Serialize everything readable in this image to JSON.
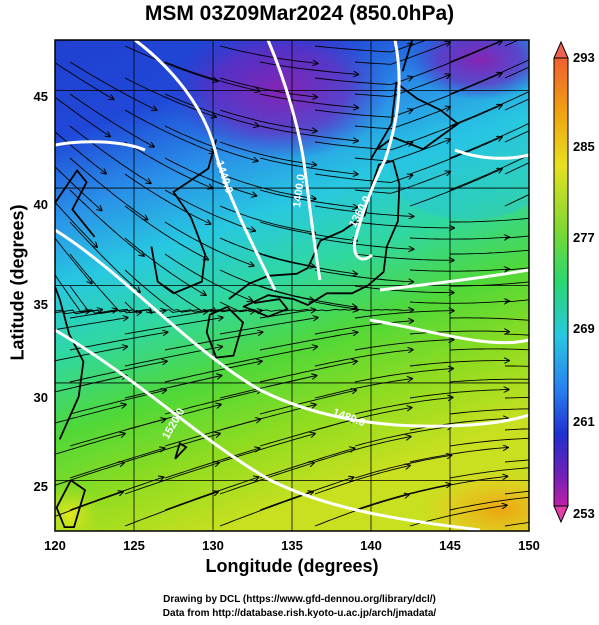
{
  "title": "MSM 03Z09Mar2024 (850.0hPa)",
  "x_axis": {
    "label": "Longitude (degrees)",
    "ticks": [
      "120",
      "125",
      "130",
      "135",
      "140",
      "145",
      "150"
    ],
    "range": [
      120,
      150
    ]
  },
  "y_axis": {
    "label": "Latitude  (degrees)",
    "ticks": [
      "25",
      "30",
      "35",
      "40",
      "45"
    ],
    "range": [
      22.4,
      47.6
    ]
  },
  "colorbar": {
    "labels": [
      "293",
      "285",
      "277",
      "269",
      "261",
      "253"
    ],
    "range": [
      253,
      293
    ],
    "colors": [
      "#f04a60",
      "#f0701a",
      "#f0b010",
      "#f0e820",
      "#b8e020",
      "#50d830",
      "#28d890",
      "#28c8e0",
      "#2888f0",
      "#2038d8",
      "#5020c0",
      "#9020b0",
      "#d020a8"
    ]
  },
  "contours": [
    {
      "label": "1440.0"
    },
    {
      "label": "1400.0"
    },
    {
      "label": "1360.0"
    },
    {
      "label": "1480.0"
    },
    {
      "label": "1520.0"
    }
  ],
  "credits": [
    "Drawing by DCL (https://www.gfd-dennou.org/library/dcl/)",
    "Data from http://database.rish.kyoto-u.ac.jp/arch/jmadata/"
  ]
}
